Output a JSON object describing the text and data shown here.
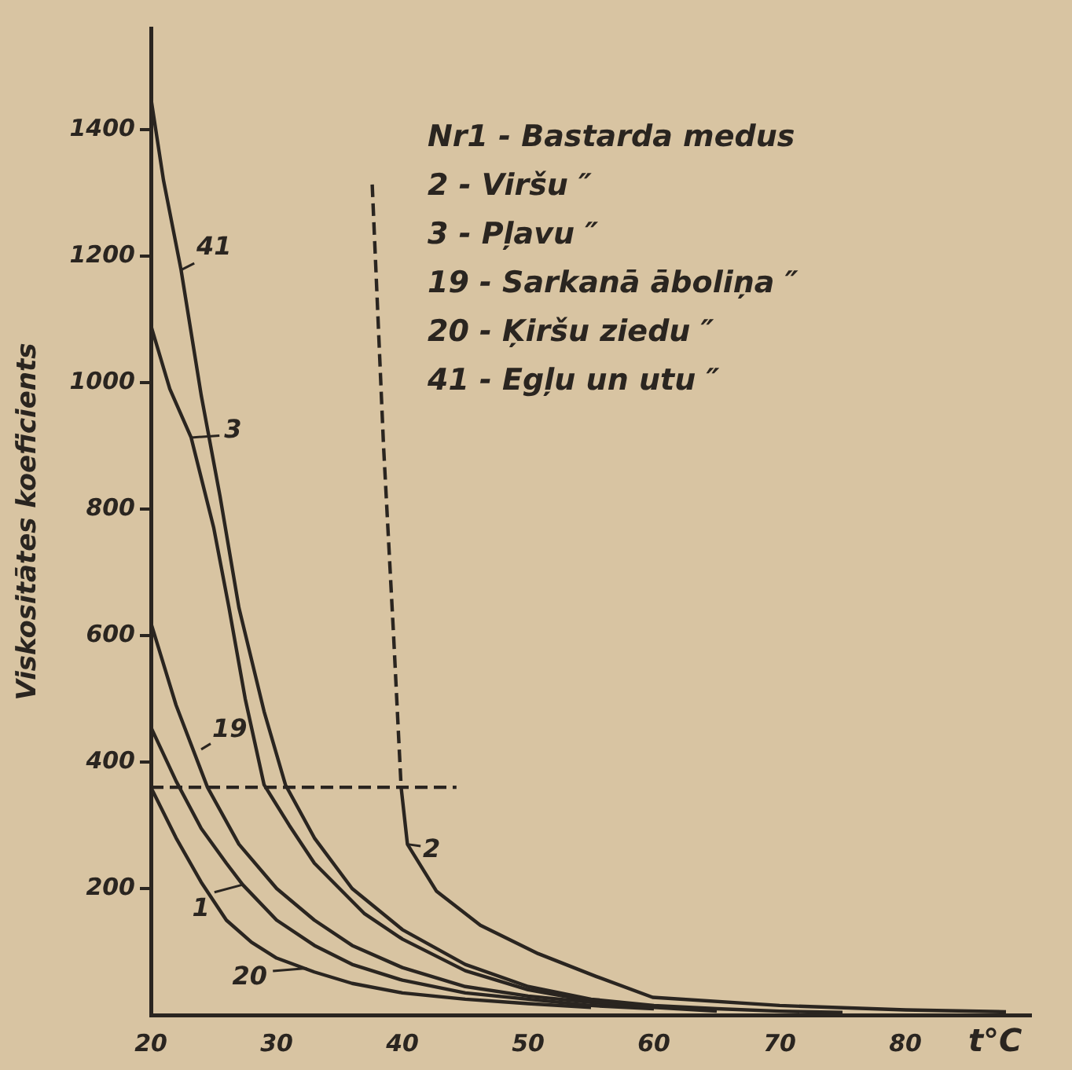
{
  "chart_data": {
    "type": "line",
    "xlabel": "t°C",
    "ylabel": "Viskositātes koeficients",
    "xlim": [
      20,
      90
    ],
    "ylim": [
      0,
      1560
    ],
    "xticks": [
      20,
      30,
      40,
      50,
      60,
      70,
      80
    ],
    "yticks": [
      200,
      400,
      600,
      800,
      1000,
      1200,
      1400
    ],
    "grid": false,
    "legend": false,
    "marker": "none",
    "line_style": "solid",
    "series": [
      {
        "color": "#2a2520",
        "x": [
          20,
          21,
          22.4,
          24,
          25.5,
          27,
          29,
          30.7,
          33,
          36,
          40,
          45,
          50,
          55,
          60,
          65,
          70,
          75
        ],
        "values": [
          1450,
          1320,
          1178,
          980,
          820,
          644,
          480,
          364,
          280,
          200,
          135,
          80,
          45,
          25,
          15,
          10,
          6,
          4
        ]
      },
      {
        "color": "#2a2520",
        "x": [
          20,
          21.5,
          23.2,
          25,
          26.2,
          27.5,
          29,
          31,
          33,
          37,
          40,
          45,
          50,
          55,
          60,
          65
        ],
        "values": [
          1090,
          990,
          913,
          770,
          645,
          500,
          364,
          300,
          240,
          160,
          120,
          70,
          40,
          22,
          12,
          6
        ]
      },
      {
        "color": "#2a2520",
        "x": [
          20,
          22,
          24.5,
          27,
          30,
          33,
          36,
          40,
          45,
          50,
          55,
          60
        ],
        "values": [
          620,
          490,
          360,
          270,
          200,
          150,
          110,
          75,
          45,
          30,
          20,
          12
        ]
      },
      {
        "color": "#2a2520",
        "x": [
          20,
          22,
          24,
          26,
          27.3,
          30,
          33,
          36,
          40,
          45,
          50,
          55,
          60
        ],
        "values": [
          455,
          370,
          295,
          240,
          206,
          150,
          110,
          80,
          55,
          35,
          25,
          15,
          10
        ]
      },
      {
        "color": "#2a2520",
        "x": [
          20,
          22,
          24,
          26,
          28,
          30,
          33,
          36,
          40,
          45,
          50,
          55
        ],
        "values": [
          360,
          280,
          210,
          150,
          115,
          90,
          68,
          50,
          35,
          25,
          18,
          12
        ]
      },
      {
        "color": "#2a2520",
        "line_style": "dashed",
        "x": [
          37.6,
          38.5,
          39.3,
          39.9
        ],
        "values": [
          1313,
          900,
          600,
          360
        ]
      },
      {
        "color": "#2a2520",
        "x": [
          39.9,
          40.4,
          42.7,
          46.2,
          50.8,
          55.4,
          59.9,
          70,
          80,
          88
        ],
        "values": [
          360,
          270,
          196,
          142,
          97,
          61,
          28,
          15,
          8,
          5
        ]
      },
      {
        "color": "#2a2520",
        "line_style": "dashed",
        "x": [
          20,
          44.3
        ],
        "values": [
          360,
          360
        ]
      }
    ],
    "annotations": [
      {
        "text": "41",
        "x": 22.4,
        "y": 1178
      },
      {
        "text": "3",
        "x": 23.2,
        "y": 913
      },
      {
        "text": "19",
        "x": 24,
        "y": 420
      },
      {
        "text": "1",
        "x": 27.3,
        "y": 206
      },
      {
        "text": "20",
        "x": 32.4,
        "y": 74
      },
      {
        "text": "2",
        "x": 40.4,
        "y": 270
      },
      "Nr1 - Bastarda medus",
      "2 - Viršu ″",
      "3 - Pļavu ″",
      "19 - Sarkanā āboliņa ″",
      "20 - Ķiršu ziedu ″",
      "41 - Egļu un utu ″"
    ]
  }
}
